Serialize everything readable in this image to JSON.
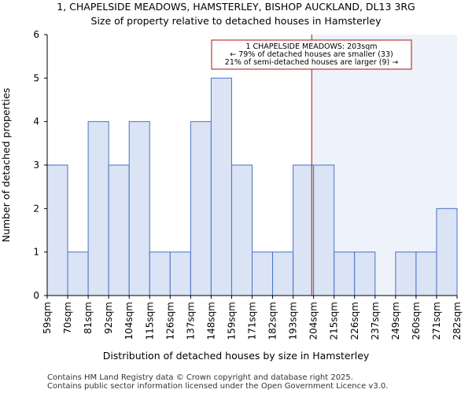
{
  "chart_data": {
    "type": "bar",
    "title_lines": [
      "1, CHAPELSIDE MEADOWS, HAMSTERLEY, BISHOP AUCKLAND, DL13 3RG",
      "Size of property relative to detached houses in Hamsterley"
    ],
    "xlabel": "Distribution of detached houses by size in Hamsterley",
    "ylabel": "Number of detached properties",
    "x_tick_labels": [
      "59sqm",
      "70sqm",
      "81sqm",
      "92sqm",
      "104sqm",
      "115sqm",
      "126sqm",
      "137sqm",
      "148sqm",
      "159sqm",
      "171sqm",
      "182sqm",
      "193sqm",
      "204sqm",
      "215sqm",
      "226sqm",
      "237sqm",
      "249sqm",
      "260sqm",
      "271sqm",
      "282sqm"
    ],
    "bins": [
      {
        "from": 59,
        "to": 70,
        "value": 3
      },
      {
        "from": 70,
        "to": 81,
        "value": 1
      },
      {
        "from": 81,
        "to": 92,
        "value": 4
      },
      {
        "from": 92,
        "to": 104,
        "value": 3
      },
      {
        "from": 104,
        "to": 115,
        "value": 4
      },
      {
        "from": 115,
        "to": 126,
        "value": 1
      },
      {
        "from": 126,
        "to": 137,
        "value": 1
      },
      {
        "from": 137,
        "to": 148,
        "value": 4
      },
      {
        "from": 148,
        "to": 159,
        "value": 5
      },
      {
        "from": 159,
        "to": 171,
        "value": 3
      },
      {
        "from": 171,
        "to": 182,
        "value": 1
      },
      {
        "from": 182,
        "to": 193,
        "value": 1
      },
      {
        "from": 193,
        "to": 204,
        "value": 3
      },
      {
        "from": 204,
        "to": 215,
        "value": 3
      },
      {
        "from": 215,
        "to": 226,
        "value": 1
      },
      {
        "from": 226,
        "to": 237,
        "value": 1
      },
      {
        "from": 237,
        "to": 249,
        "value": 0
      },
      {
        "from": 249,
        "to": 260,
        "value": 1
      },
      {
        "from": 260,
        "to": 271,
        "value": 1
      },
      {
        "from": 271,
        "to": 282,
        "value": 2
      }
    ],
    "yticks": [
      0,
      1,
      2,
      3,
      4,
      5,
      6
    ],
    "ylim": [
      0,
      6
    ],
    "marker": {
      "value_sqm": 203,
      "annotation_lines": [
        "1 CHAPELSIDE MEADOWS: 203sqm",
        "← 79% of detached houses are smaller (33)",
        "21% of semi-detached houses are larger (9) →"
      ]
    },
    "colors": {
      "bar_fill": "#dae4f5",
      "bar_edge": "#4a72c4",
      "marker_line": "#aa1111",
      "annotation_border": "#aa1111",
      "highlight_region": "#eef2fb",
      "axis": "#000000"
    }
  },
  "footer": {
    "line1": "Contains HM Land Registry data © Crown copyright and database right 2025.",
    "line2": "Contains public sector information licensed under the Open Government Licence v3.0."
  }
}
